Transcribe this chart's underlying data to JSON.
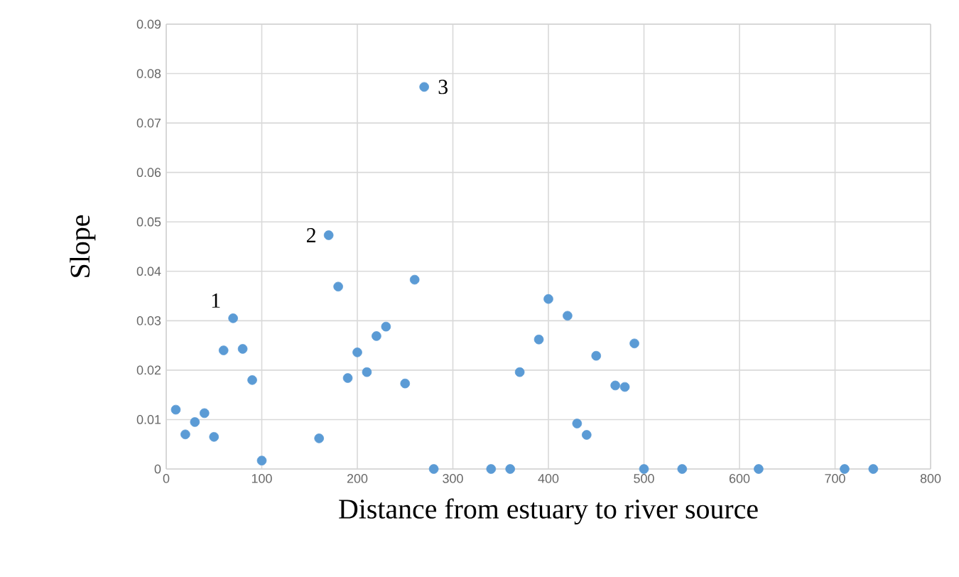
{
  "chart_data": {
    "type": "scatter",
    "xlabel": "Distance from estuary to river source",
    "ylabel": "Slope",
    "x": [
      10,
      20,
      30,
      40,
      50,
      60,
      70,
      80,
      90,
      100,
      160,
      170,
      180,
      190,
      200,
      210,
      220,
      230,
      250,
      260,
      270,
      280,
      340,
      360,
      370,
      390,
      400,
      420,
      430,
      440,
      450,
      470,
      480,
      490,
      500,
      540,
      620,
      710,
      740
    ],
    "values": [
      0.012,
      0.007,
      0.0095,
      0.0113,
      0.0065,
      0.024,
      0.0305,
      0.0243,
      0.018,
      0.0017,
      0.0062,
      0.0473,
      0.0369,
      0.0184,
      0.0236,
      0.0196,
      0.0269,
      0.0288,
      0.0173,
      0.0383,
      0.0773,
      0,
      0,
      0,
      0.0196,
      0.0262,
      0.0344,
      0.031,
      0.0092,
      0.0069,
      0.0229,
      0.0169,
      0.0166,
      0.0254,
      0,
      0,
      0,
      0,
      0
    ],
    "color": "#5b9bd5",
    "marker": "circle",
    "grid": true,
    "xlim": [
      0,
      800
    ],
    "xticks": [
      0,
      100,
      200,
      300,
      400,
      500,
      600,
      700,
      800
    ],
    "ylim": [
      0,
      0.09
    ],
    "yticks": [
      0,
      0.01,
      0.02,
      0.03,
      0.04,
      0.05,
      0.06,
      0.07,
      0.08,
      0.09
    ],
    "annotations": [
      {
        "text": "1",
        "x": 70,
        "y": 0.0305
      },
      {
        "text": "2",
        "x": 170,
        "y": 0.0473
      },
      {
        "text": "3",
        "x": 270,
        "y": 0.0773
      }
    ]
  }
}
